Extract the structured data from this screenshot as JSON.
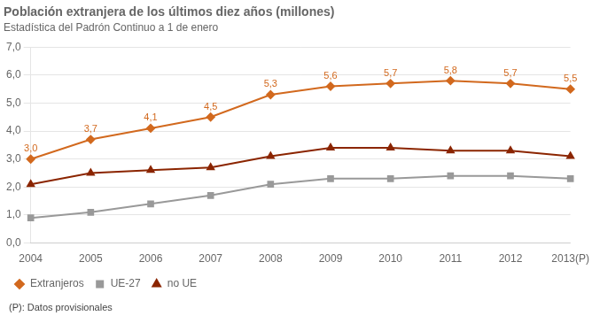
{
  "chart_data": {
    "type": "line",
    "title": "Población extranjera de los últimos diez años (millones)",
    "subtitle": "Estadística del Padrón Continuo a 1 de enero",
    "footnote": "(P): Datos provisionales",
    "categories": [
      "2004",
      "2005",
      "2006",
      "2007",
      "2008",
      "2009",
      "2010",
      "2011",
      "2012",
      "2013(P)"
    ],
    "series": [
      {
        "name": "Extranjeros",
        "color": "#D2691E",
        "marker": "diamond",
        "values": [
          3.0,
          3.7,
          4.1,
          4.5,
          5.3,
          5.6,
          5.7,
          5.8,
          5.7,
          5.5
        ],
        "data_labels": true,
        "value_labels": [
          "3,0",
          "3,7",
          "4,1",
          "4,5",
          "5,3",
          "5,6",
          "5,7",
          "5,8",
          "5,7",
          "5,5"
        ]
      },
      {
        "name": "UE-27",
        "color": "#999999",
        "marker": "square",
        "values": [
          0.9,
          1.1,
          1.4,
          1.7,
          2.1,
          2.3,
          2.3,
          2.4,
          2.4,
          2.3
        ]
      },
      {
        "name": "no UE",
        "color": "#8B2500",
        "marker": "triangle",
        "values": [
          2.1,
          2.5,
          2.6,
          2.7,
          3.1,
          3.4,
          3.4,
          3.3,
          3.3,
          3.1
        ]
      }
    ],
    "ylim": [
      0.0,
      7.0
    ],
    "yticks": [
      {
        "value": 0.0,
        "label": "0,0"
      },
      {
        "value": 1.0,
        "label": "1,0"
      },
      {
        "value": 2.0,
        "label": "2,0"
      },
      {
        "value": 3.0,
        "label": "3,0"
      },
      {
        "value": 4.0,
        "label": "4,0"
      },
      {
        "value": 5.0,
        "label": "5,0"
      },
      {
        "value": 6.0,
        "label": "6,0"
      },
      {
        "value": 7.0,
        "label": "7,0"
      }
    ],
    "grid": true,
    "legend": "bottom"
  }
}
